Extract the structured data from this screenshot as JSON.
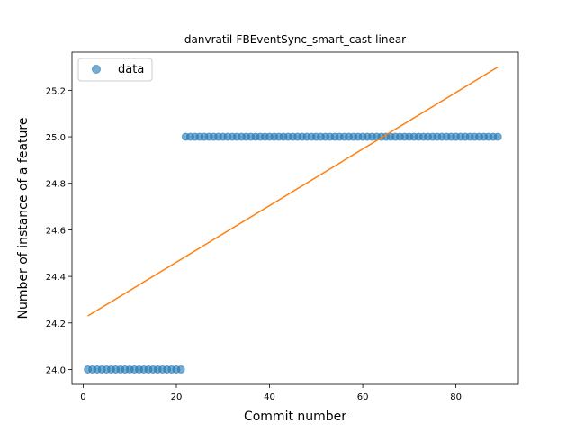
{
  "chart_data": {
    "type": "scatter",
    "title": "danvratil-FBEventSync_smart_cast-linear",
    "xlabel": "Commit number",
    "ylabel": "Number of instance of a feature",
    "xlim": [
      -2.4,
      93.4
    ],
    "ylim": [
      23.936,
      25.364
    ],
    "xticks": [
      0,
      20,
      40,
      60,
      80
    ],
    "xtick_labels": [
      "0",
      "20",
      "40",
      "60",
      "80"
    ],
    "yticks": [
      24.0,
      24.2,
      24.4,
      24.6,
      24.8,
      25.0,
      25.2
    ],
    "ytick_labels": [
      "24.0",
      "24.2",
      "24.4",
      "24.6",
      "24.8",
      "25.0",
      "25.2"
    ],
    "grid": false,
    "legend_position": "upper-left",
    "series": [
      {
        "name": "data",
        "kind": "points",
        "color": "#1f77b4",
        "x": [
          1,
          2,
          3,
          4,
          5,
          6,
          7,
          8,
          9,
          10,
          11,
          12,
          13,
          14,
          15,
          16,
          17,
          18,
          19,
          20,
          21,
          22,
          23,
          24,
          25,
          26,
          27,
          28,
          29,
          30,
          31,
          32,
          33,
          34,
          35,
          36,
          37,
          38,
          39,
          40,
          41,
          42,
          43,
          44,
          45,
          46,
          47,
          48,
          49,
          50,
          51,
          52,
          53,
          54,
          55,
          56,
          57,
          58,
          59,
          60,
          61,
          62,
          63,
          64,
          65,
          66,
          67,
          68,
          69,
          70,
          71,
          72,
          73,
          74,
          75,
          76,
          77,
          78,
          79,
          80,
          81,
          82,
          83,
          84,
          85,
          86,
          87,
          88,
          89
        ],
        "y": [
          24,
          24,
          24,
          24,
          24,
          24,
          24,
          24,
          24,
          24,
          24,
          24,
          24,
          24,
          24,
          24,
          24,
          24,
          24,
          24,
          24,
          25,
          25,
          25,
          25,
          25,
          25,
          25,
          25,
          25,
          25,
          25,
          25,
          25,
          25,
          25,
          25,
          25,
          25,
          25,
          25,
          25,
          25,
          25,
          25,
          25,
          25,
          25,
          25,
          25,
          25,
          25,
          25,
          25,
          25,
          25,
          25,
          25,
          25,
          25,
          25,
          25,
          25,
          25,
          25,
          25,
          25,
          25,
          25,
          25,
          25,
          25,
          25,
          25,
          25,
          25,
          25,
          25,
          25,
          25,
          25,
          25,
          25,
          25,
          25,
          25,
          25,
          25,
          25
        ]
      },
      {
        "kind": "line",
        "color": "#ff7f0e",
        "x": [
          1,
          89
        ],
        "y": [
          24.23,
          25.3
        ]
      }
    ]
  }
}
